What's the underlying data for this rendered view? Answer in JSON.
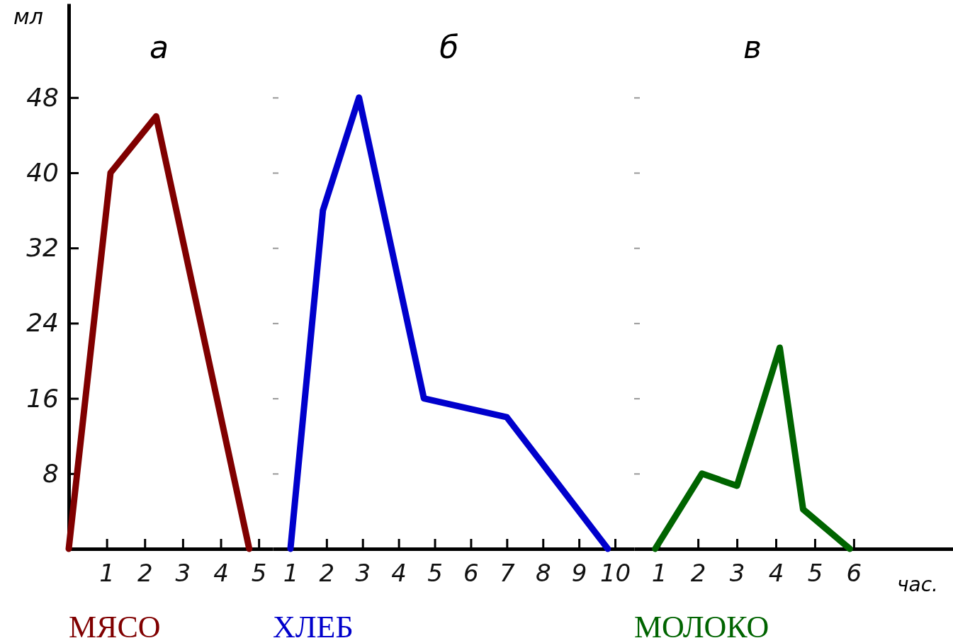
{
  "chart_data": [
    {
      "type": "line",
      "title": "а",
      "ylabel": "мл",
      "xlim": [
        0,
        5.37
      ],
      "ylim": [
        0,
        58
      ],
      "xticks": [
        1,
        2,
        3,
        4,
        5
      ],
      "yticks": [
        8,
        16,
        24,
        32,
        40,
        48
      ],
      "grid": false,
      "legend": false,
      "marker": "none",
      "line_style": "solid",
      "series": [
        {
          "name": "МЯСО",
          "color": "#800000",
          "x": [
            0,
            1.1,
            2.3,
            4.75
          ],
          "values": [
            0,
            40,
            46,
            0
          ]
        }
      ]
    },
    {
      "type": "line",
      "title": "б",
      "xlim": [
        0.51,
        10.53
      ],
      "ylim": [
        0,
        48
      ],
      "xticks": [
        1,
        2,
        3,
        4,
        5,
        6,
        7,
        8,
        9,
        10
      ],
      "yticks": [
        8,
        16,
        24,
        32,
        40,
        48
      ],
      "tick_labels": "x",
      "grid": false,
      "legend": false,
      "marker": "none",
      "line_style": "solid",
      "series": [
        {
          "name": "ХЛЕБ",
          "color": "#0000cc",
          "x": [
            1,
            1.9,
            2.9,
            4.7,
            7,
            9.8
          ],
          "values": [
            0,
            36,
            48,
            16,
            14,
            0
          ]
        }
      ]
    },
    {
      "type": "line",
      "title": "в",
      "xlabel": "час.",
      "xlim": [
        0.36,
        8.55
      ],
      "ylim": [
        0,
        48
      ],
      "xticks": [
        1,
        2,
        3,
        4,
        5,
        6
      ],
      "yticks": [
        8,
        16,
        24,
        32,
        40,
        48
      ],
      "tick_labels": "x",
      "grid": false,
      "legend": false,
      "marker": "none",
      "line_style": "solid",
      "series": [
        {
          "name": "МОЛОКО",
          "color": "#006400",
          "x": [
            0.9,
            2.1,
            3,
            4.1,
            4.7,
            5.9
          ],
          "values": [
            0,
            8,
            6.7,
            21.4,
            4.2,
            0
          ]
        }
      ]
    }
  ]
}
